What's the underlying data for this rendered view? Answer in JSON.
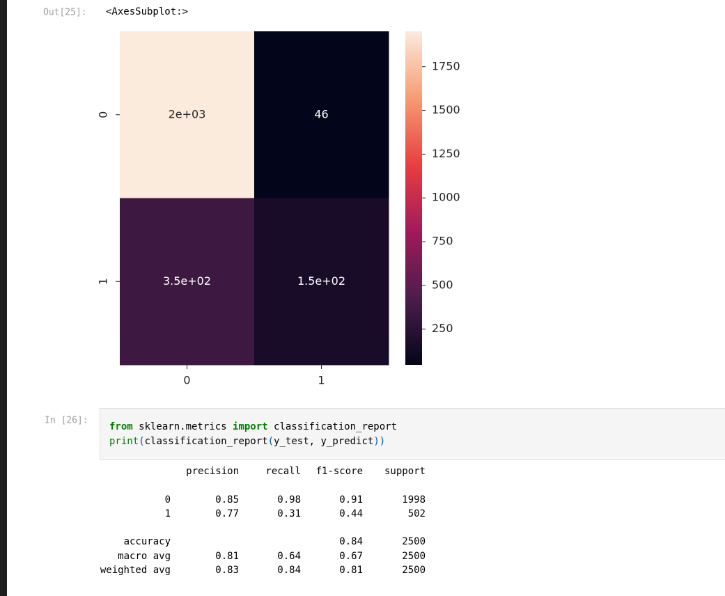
{
  "output_cell": {
    "prompt": "Out[25]:",
    "text": "<AxesSubplot:>"
  },
  "chart_data": {
    "type": "heatmap",
    "x_categories": [
      "0",
      "1"
    ],
    "y_categories": [
      "0",
      "1"
    ],
    "values": [
      [
        1952,
        46
      ],
      [
        348,
        154
      ]
    ],
    "value_labels": [
      [
        "2e+03",
        "46"
      ],
      [
        "3.5e+02",
        "1.5e+02"
      ]
    ],
    "clim": [
      46,
      1952
    ],
    "cticks": [
      250,
      500,
      750,
      1000,
      1250,
      1500,
      1750
    ],
    "colormap": [
      "#03051a",
      "#4c1d4b",
      "#a11a5b",
      "#e83f3f",
      "#f69c73",
      "#faebdd"
    ]
  },
  "input_cell": {
    "prompt": "In [26]:",
    "code": [
      [
        {
          "text": "from",
          "style": "keyword"
        },
        {
          "text": " sklearn.metrics ",
          "style": "plain"
        },
        {
          "text": "import",
          "style": "keyword"
        },
        {
          "text": " classification_report",
          "style": "plain"
        }
      ],
      [
        {
          "text": "print",
          "style": "builtin"
        },
        {
          "text": "(",
          "style": "paren"
        },
        {
          "text": "classification_report",
          "style": "plain"
        },
        {
          "text": "(",
          "style": "paren"
        },
        {
          "text": "y_test, y_predict",
          "style": "plain"
        },
        {
          "text": "))",
          "style": "paren"
        }
      ]
    ]
  },
  "report": {
    "header": [
      "precision",
      "recall",
      "f1-score",
      "support"
    ],
    "rows": [
      {
        "label": "0",
        "values": [
          "0.85",
          "0.98",
          "0.91",
          "1998"
        ]
      },
      {
        "label": "1",
        "values": [
          "0.77",
          "0.31",
          "0.44",
          "502"
        ]
      },
      {
        "label": "accuracy",
        "values": [
          null,
          null,
          "0.84",
          "2500"
        ]
      },
      {
        "label": "macro avg",
        "values": [
          "0.81",
          "0.64",
          "0.67",
          "2500"
        ]
      },
      {
        "label": "weighted avg",
        "values": [
          "0.83",
          "0.84",
          "0.81",
          "2500"
        ]
      }
    ]
  }
}
